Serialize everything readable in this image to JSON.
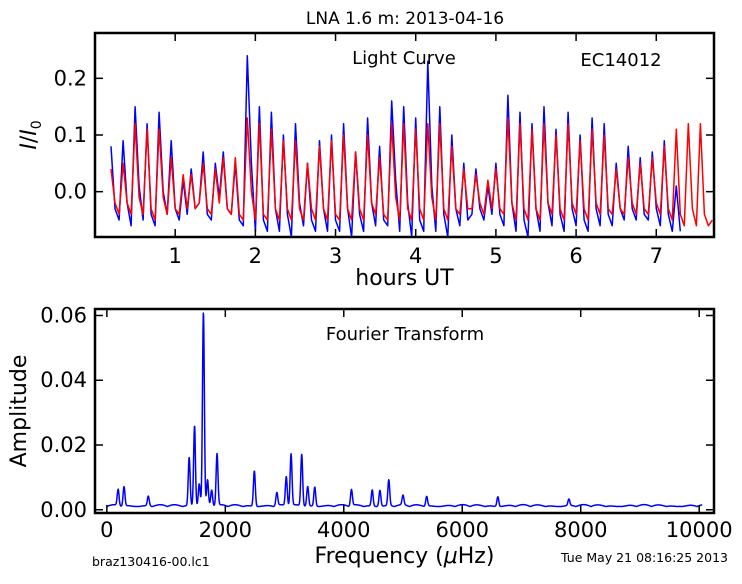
{
  "page": {
    "title": "LNA 1.6 m:  2013-04-16",
    "footer_left": "braz130416-00.lc1",
    "footer_right": "Tue May 21 08:16:25 2013"
  },
  "chart_data": [
    {
      "type": "line",
      "annotation": "Light Curve",
      "object_label": "EC14012",
      "xlabel": "hours UT",
      "ylabel": "I / I0",
      "xlim": [
        0.0,
        7.72
      ],
      "ylim": [
        -0.08,
        0.28
      ],
      "xticks": [
        1,
        2,
        3,
        4,
        5,
        6,
        7
      ],
      "yticks": [
        0.0,
        0.1,
        0.2
      ],
      "ytick_labels": [
        "0.0",
        "0.1",
        "0.2"
      ],
      "series": [
        {
          "color": "#0000ff",
          "x": [
            0.2,
            0.25,
            0.3,
            0.35,
            0.4,
            0.45,
            0.5,
            0.55,
            0.6,
            0.65,
            0.7,
            0.75,
            0.8,
            0.85,
            0.9,
            0.95,
            1.0,
            1.05,
            1.1,
            1.15,
            1.2,
            1.25,
            1.3,
            1.35,
            1.4,
            1.45,
            1.5,
            1.55,
            1.6,
            1.65,
            1.7,
            1.75,
            1.8,
            1.85,
            1.9,
            1.95,
            2.0,
            2.05,
            2.1,
            2.15,
            2.2,
            2.25,
            2.3,
            2.35,
            2.4,
            2.45,
            2.5,
            2.55,
            2.6,
            2.65,
            2.7,
            2.75,
            2.8,
            2.85,
            2.9,
            2.95,
            3.0,
            3.05,
            3.1,
            3.15,
            3.2,
            3.25,
            3.3,
            3.35,
            3.4,
            3.45,
            3.5,
            3.55,
            3.6,
            3.65,
            3.7,
            3.75,
            3.8,
            3.85,
            3.9,
            3.95,
            4.0,
            4.05,
            4.1,
            4.15,
            4.2,
            4.25,
            4.3,
            4.35,
            4.4,
            4.45,
            4.5,
            4.55,
            4.6,
            4.65,
            4.7,
            4.75,
            4.8,
            4.85,
            4.9,
            4.95,
            5.0,
            5.05,
            5.1,
            5.15,
            5.2,
            5.25,
            5.3,
            5.35,
            5.4,
            5.45,
            5.5,
            5.55,
            5.6,
            5.65,
            5.7,
            5.75,
            5.8,
            5.85,
            5.9,
            5.95,
            6.0,
            6.05,
            6.1,
            6.15,
            6.2,
            6.25,
            6.3,
            6.35,
            6.4,
            6.45,
            6.5,
            6.55,
            6.6,
            6.65,
            6.7,
            6.75,
            6.8,
            6.85,
            6.9,
            6.95,
            7.0,
            7.05,
            7.1,
            7.15,
            7.2,
            7.25,
            7.3
          ],
          "y": [
            0.08,
            -0.03,
            -0.05,
            0.09,
            -0.02,
            -0.06,
            0.15,
            0.01,
            -0.05,
            0.12,
            -0.04,
            -0.06,
            0.14,
            0.0,
            -0.04,
            0.09,
            -0.03,
            -0.05,
            0.02,
            -0.04,
            0.04,
            -0.03,
            -0.02,
            0.07,
            -0.04,
            -0.05,
            0.05,
            -0.01,
            0.07,
            -0.03,
            -0.04,
            0.05,
            -0.05,
            -0.06,
            0.24,
            0.05,
            -0.07,
            0.15,
            -0.05,
            -0.07,
            0.14,
            -0.03,
            -0.07,
            0.1,
            -0.04,
            -0.08,
            0.12,
            -0.02,
            -0.06,
            0.05,
            -0.05,
            -0.07,
            0.09,
            -0.03,
            -0.07,
            0.1,
            -0.05,
            -0.07,
            0.12,
            -0.03,
            -0.08,
            0.07,
            -0.04,
            -0.07,
            0.13,
            -0.02,
            -0.06,
            0.08,
            -0.05,
            -0.06,
            0.16,
            0.02,
            -0.07,
            0.15,
            -0.02,
            -0.08,
            0.13,
            -0.05,
            -0.07,
            0.23,
            0.01,
            -0.07,
            0.15,
            -0.04,
            -0.08,
            0.1,
            -0.03,
            -0.06,
            0.05,
            -0.05,
            -0.04,
            0.04,
            -0.03,
            -0.05,
            0.01,
            -0.04,
            0.05,
            -0.04,
            -0.06,
            0.17,
            -0.02,
            -0.07,
            0.14,
            -0.05,
            -0.08,
            0.12,
            -0.03,
            -0.07,
            0.15,
            -0.02,
            -0.06,
            0.11,
            -0.04,
            -0.07,
            0.14,
            -0.03,
            -0.06,
            0.1,
            -0.05,
            -0.07,
            0.13,
            -0.03,
            -0.06,
            0.12,
            -0.04,
            -0.06,
            0.05,
            -0.03,
            -0.05,
            0.08,
            -0.03,
            -0.05,
            0.06,
            -0.04,
            -0.05,
            0.07,
            -0.03,
            -0.06,
            0.09,
            -0.04,
            -0.07,
            0.01,
            -0.07
          ]
        },
        {
          "color": "#ff0000",
          "x": [
            0.2,
            0.25,
            0.3,
            0.35,
            0.4,
            0.45,
            0.5,
            0.55,
            0.6,
            0.65,
            0.7,
            0.75,
            0.8,
            0.85,
            0.9,
            0.95,
            1.0,
            1.05,
            1.1,
            1.15,
            1.2,
            1.25,
            1.3,
            1.35,
            1.4,
            1.45,
            1.5,
            1.55,
            1.6,
            1.65,
            1.7,
            1.75,
            1.8,
            1.85,
            1.9,
            1.95,
            2.0,
            2.05,
            2.1,
            2.15,
            2.2,
            2.25,
            2.3,
            2.35,
            2.4,
            2.45,
            2.5,
            2.55,
            2.6,
            2.65,
            2.7,
            2.75,
            2.8,
            2.85,
            2.9,
            2.95,
            3.0,
            3.05,
            3.1,
            3.15,
            3.2,
            3.25,
            3.3,
            3.35,
            3.4,
            3.45,
            3.5,
            3.55,
            3.6,
            3.65,
            3.7,
            3.75,
            3.8,
            3.85,
            3.9,
            3.95,
            4.0,
            4.05,
            4.1,
            4.15,
            4.2,
            4.25,
            4.3,
            4.35,
            4.4,
            4.45,
            4.5,
            4.55,
            4.6,
            4.65,
            4.7,
            4.75,
            4.8,
            4.85,
            4.9,
            4.95,
            5.0,
            5.05,
            5.1,
            5.15,
            5.2,
            5.25,
            5.3,
            5.35,
            5.4,
            5.45,
            5.5,
            5.55,
            5.6,
            5.65,
            5.7,
            5.75,
            5.8,
            5.85,
            5.9,
            5.95,
            6.0,
            6.05,
            6.1,
            6.15,
            6.2,
            6.25,
            6.3,
            6.35,
            6.4,
            6.45,
            6.5,
            6.55,
            6.6,
            6.65,
            6.7,
            6.75,
            6.8,
            6.85,
            6.9,
            6.95,
            7.0,
            7.05,
            7.1,
            7.15,
            7.2,
            7.25,
            7.3,
            7.35,
            7.4,
            7.45,
            7.5,
            7.55,
            7.6,
            7.65,
            7.7
          ],
          "y": [
            0.04,
            -0.02,
            -0.04,
            0.05,
            -0.02,
            -0.04,
            0.12,
            -0.01,
            -0.04,
            0.11,
            -0.03,
            -0.05,
            0.11,
            -0.01,
            -0.04,
            0.06,
            -0.03,
            -0.04,
            0.03,
            -0.03,
            0.03,
            -0.03,
            -0.02,
            0.05,
            -0.03,
            -0.04,
            0.04,
            -0.02,
            0.06,
            -0.03,
            -0.04,
            0.06,
            -0.04,
            -0.05,
            0.13,
            0.0,
            -0.05,
            0.12,
            -0.04,
            -0.05,
            0.11,
            -0.03,
            -0.05,
            0.09,
            -0.03,
            -0.05,
            0.09,
            -0.03,
            -0.05,
            0.05,
            -0.03,
            -0.05,
            0.08,
            -0.03,
            -0.05,
            0.09,
            -0.04,
            -0.05,
            0.1,
            -0.03,
            -0.05,
            0.07,
            -0.03,
            -0.05,
            0.1,
            -0.02,
            -0.04,
            0.06,
            -0.04,
            -0.05,
            0.12,
            -0.01,
            -0.05,
            0.12,
            -0.03,
            -0.05,
            0.11,
            -0.03,
            -0.05,
            0.12,
            -0.01,
            -0.05,
            0.12,
            -0.03,
            -0.05,
            0.08,
            -0.03,
            -0.04,
            0.04,
            -0.03,
            -0.03,
            0.03,
            -0.02,
            -0.04,
            0.02,
            -0.03,
            0.04,
            -0.03,
            -0.04,
            0.13,
            -0.02,
            -0.05,
            0.12,
            -0.03,
            -0.05,
            0.11,
            -0.03,
            -0.05,
            0.12,
            -0.02,
            -0.04,
            0.1,
            -0.03,
            -0.05,
            0.12,
            -0.02,
            -0.04,
            0.09,
            -0.03,
            -0.05,
            0.11,
            -0.02,
            -0.04,
            0.1,
            -0.03,
            -0.04,
            0.04,
            -0.03,
            -0.04,
            0.06,
            -0.02,
            -0.04,
            0.05,
            -0.03,
            -0.04,
            0.06,
            -0.02,
            -0.04,
            0.08,
            -0.03,
            -0.05,
            0.11,
            -0.04,
            -0.06,
            0.12,
            -0.03,
            -0.06,
            0.12,
            -0.04,
            -0.06,
            -0.05
          ]
        }
      ]
    },
    {
      "type": "line",
      "annotation": "Fourier Transform",
      "xlabel": "Frequency (μHz)",
      "ylabel": "Amplitude",
      "xlim": [
        -200,
        10250
      ],
      "ylim": [
        -0.001,
        0.062
      ],
      "xticks": [
        0,
        2000,
        4000,
        6000,
        8000,
        10000
      ],
      "yticks": [
        0.0,
        0.02,
        0.04,
        0.06
      ],
      "ytick_labels": [
        "0.00",
        "0.02",
        "0.04",
        "0.06"
      ],
      "series": [
        {
          "color": "#0000ff",
          "baseline": 0.001,
          "peaks": [
            {
              "f": 190,
              "a": 0.005
            },
            {
              "f": 290,
              "a": 0.006
            },
            {
              "f": 700,
              "a": 0.003
            },
            {
              "f": 1390,
              "a": 0.015
            },
            {
              "f": 1480,
              "a": 0.025
            },
            {
              "f": 1560,
              "a": 0.007
            },
            {
              "f": 1630,
              "a": 0.06
            },
            {
              "f": 1700,
              "a": 0.008
            },
            {
              "f": 1770,
              "a": 0.005
            },
            {
              "f": 1860,
              "a": 0.016
            },
            {
              "f": 2490,
              "a": 0.011
            },
            {
              "f": 2870,
              "a": 0.004
            },
            {
              "f": 3030,
              "a": 0.009
            },
            {
              "f": 3110,
              "a": 0.016
            },
            {
              "f": 3290,
              "a": 0.016
            },
            {
              "f": 3390,
              "a": 0.006
            },
            {
              "f": 3510,
              "a": 0.006
            },
            {
              "f": 4130,
              "a": 0.005
            },
            {
              "f": 4480,
              "a": 0.005
            },
            {
              "f": 4610,
              "a": 0.005
            },
            {
              "f": 4760,
              "a": 0.008
            },
            {
              "f": 5000,
              "a": 0.003
            },
            {
              "f": 5400,
              "a": 0.003
            },
            {
              "f": 6600,
              "a": 0.003
            },
            {
              "f": 7800,
              "a": 0.002
            }
          ]
        }
      ]
    }
  ]
}
